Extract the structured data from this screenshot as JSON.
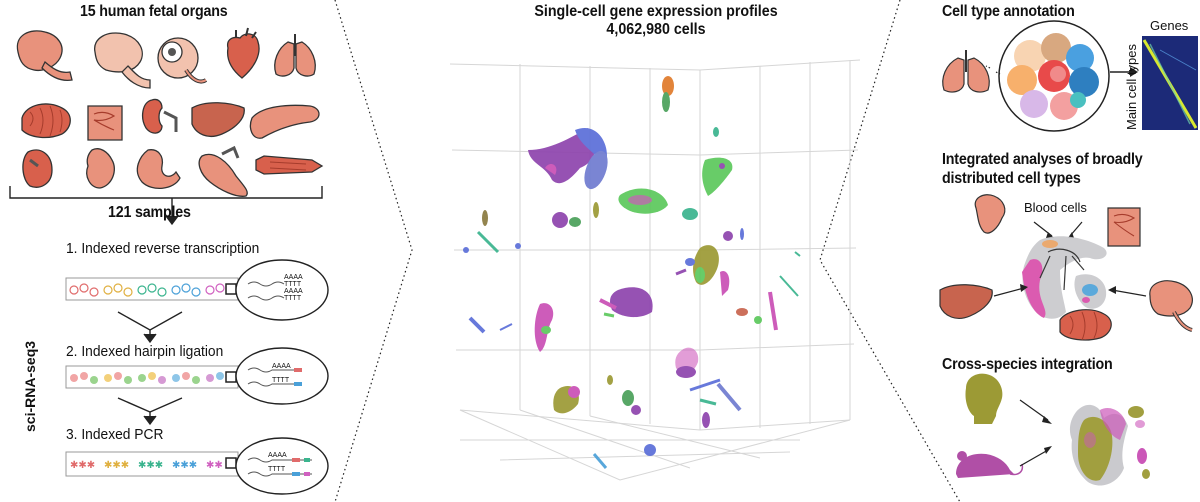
{
  "left": {
    "title": "15 human fetal organs",
    "samples": "121 samples",
    "method_label": "sci-RNA-seq3",
    "steps": [
      "1. Indexed reverse transcription",
      "2. Indexed hairpin ligation",
      "3. Indexed PCR"
    ],
    "seq_label": "AAAA",
    "seq_label2": "TTTT"
  },
  "center": {
    "title_line1": "Single-cell gene expression profiles",
    "title_line2": "4,062,980 cells"
  },
  "right": {
    "annotation_title": "Cell type annotation",
    "genes_label": "Genes",
    "main_cell_types_label": "Main cell types",
    "integrated_title_line1": "Integrated analyses of broadly",
    "integrated_title_line2": "distributed cell types",
    "blood_cells_label": "Blood cells",
    "cross_species_title": "Cross-species integration"
  },
  "colors": {
    "organ": "#e8927c",
    "organ_dark": "#c8644e",
    "human_head": "#9c9a35",
    "mouse": "#b04fa6",
    "green": "#5cc85c",
    "purple": "#8e44ad",
    "magenta": "#c94fb5"
  }
}
